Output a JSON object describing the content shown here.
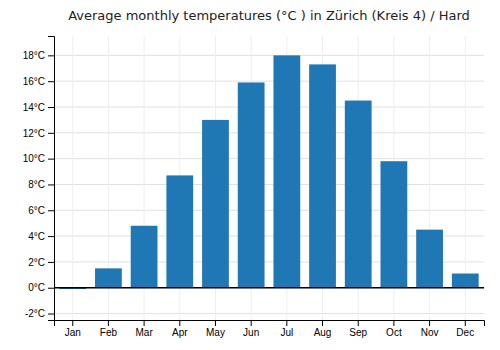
{
  "chart_data": {
    "type": "bar",
    "title": "Average monthly temperatures (°C ) in Zürich (Kreis 4) / Hard",
    "categories": [
      "Jan",
      "Feb",
      "Mar",
      "Apr",
      "May",
      "Jun",
      "Jul",
      "Aug",
      "Sep",
      "Oct",
      "Nov",
      "Dec"
    ],
    "values": [
      -0.1,
      1.5,
      4.8,
      8.7,
      13.0,
      15.9,
      18.0,
      17.3,
      14.5,
      9.8,
      4.5,
      1.1
    ],
    "ylim": [
      -2.5,
      19.5
    ],
    "yticks": [
      {
        "value": -2,
        "label": "-2°C"
      },
      {
        "value": 0,
        "label": "0°C"
      },
      {
        "value": 2,
        "label": "2°C"
      },
      {
        "value": 4,
        "label": "4°C"
      },
      {
        "value": 6,
        "label": "6°C"
      },
      {
        "value": 8,
        "label": "8°C"
      },
      {
        "value": 10,
        "label": "10°C"
      },
      {
        "value": 12,
        "label": "12°C"
      },
      {
        "value": 14,
        "label": "14°C"
      },
      {
        "value": 16,
        "label": "16°C"
      },
      {
        "value": 18,
        "label": "18°C"
      }
    ],
    "grid": true
  }
}
